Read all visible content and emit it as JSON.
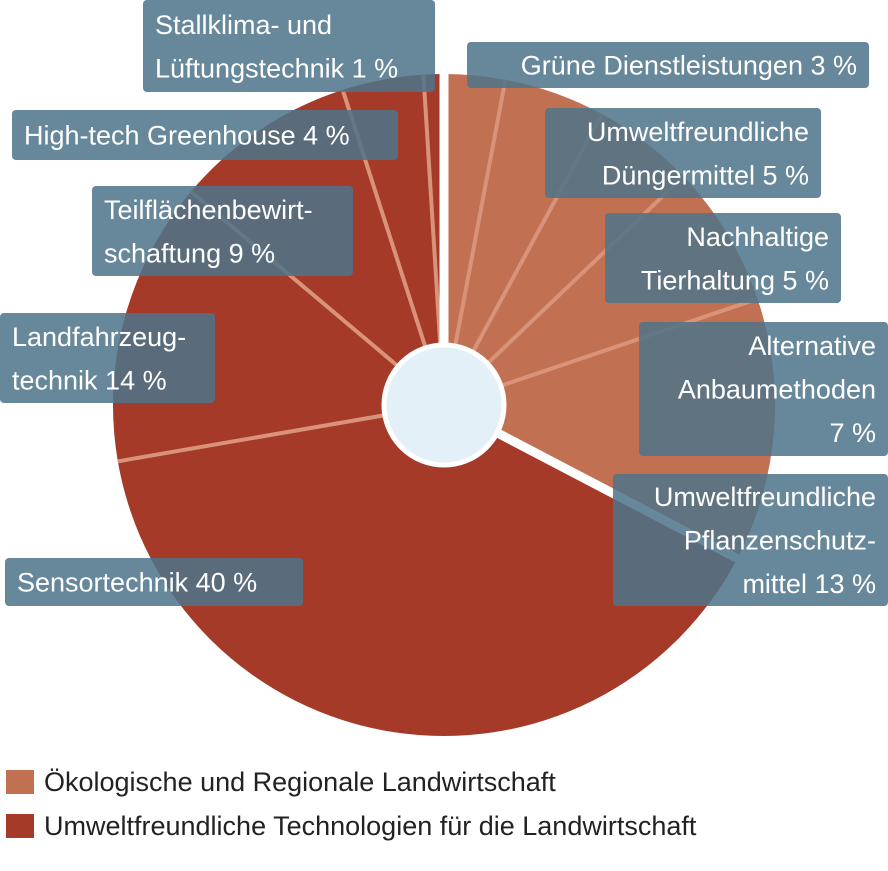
{
  "chart_data": {
    "type": "pie",
    "style": "donut",
    "colors": {
      "group_oekologisch": "#c27052",
      "group_technologien": "#a53a28",
      "label_box": "#4e7389",
      "hole": "#e3f0f8",
      "separator_light": "#d9937a"
    },
    "groups": [
      {
        "key": "oekologisch",
        "name": "Ökologische und Regionale Landwirtschaft",
        "color": "#c27052"
      },
      {
        "key": "technologien",
        "name": "Umweltfreundliche Technologien für die Landwirtschaft",
        "color": "#a53a28"
      }
    ],
    "slices": [
      {
        "group": "oekologisch",
        "value": 3,
        "label_lines": [
          "Grüne Dienstleistungen 3 %"
        ]
      },
      {
        "group": "oekologisch",
        "value": 5,
        "label_lines": [
          "Umweltfreundliche",
          "Düngermittel 5 %"
        ]
      },
      {
        "group": "oekologisch",
        "value": 5,
        "label_lines": [
          "Nachhaltige",
          "Tierhaltung 5 %"
        ]
      },
      {
        "group": "oekologisch",
        "value": 7,
        "label_lines": [
          "Alternative",
          "Anbaumethoden",
          "7 %"
        ]
      },
      {
        "group": "oekologisch",
        "value": 13,
        "label_lines": [
          "Umweltfreundliche",
          "Pflanzenschutz-",
          "mittel 13 %"
        ]
      },
      {
        "group": "technologien",
        "value": 40,
        "label_lines": [
          "Sensortechnik 40 %"
        ]
      },
      {
        "group": "technologien",
        "value": 14,
        "label_lines": [
          "Landfahrzeug-",
          "technik 14 %"
        ]
      },
      {
        "group": "technologien",
        "value": 9,
        "label_lines": [
          "Teilflächenbewirt-",
          "schaftung 9 %"
        ]
      },
      {
        "group": "technologien",
        "value": 4,
        "label_lines": [
          "High-tech Greenhouse 4 %"
        ]
      },
      {
        "group": "technologien",
        "value": 1,
        "label_lines": [
          "Stallklima- und",
          "Lüftungstechnik 1 %"
        ]
      }
    ]
  }
}
